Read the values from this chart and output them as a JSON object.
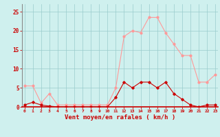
{
  "hours": [
    0,
    1,
    2,
    3,
    4,
    5,
    6,
    7,
    8,
    9,
    10,
    11,
    12,
    13,
    14,
    15,
    16,
    17,
    18,
    19,
    20,
    21,
    22,
    23
  ],
  "vent_moyen": [
    0.5,
    1.2,
    0.5,
    0.2,
    0.0,
    0.0,
    0.0,
    0.0,
    0.0,
    0.0,
    0.0,
    2.5,
    6.5,
    5.0,
    6.5,
    6.5,
    5.0,
    6.5,
    3.5,
    2.0,
    0.5,
    0.0,
    0.5,
    0.5
  ],
  "rafales": [
    5.5,
    5.5,
    1.0,
    3.5,
    0.5,
    0.5,
    0.5,
    0.5,
    0.5,
    0.5,
    0.5,
    5.0,
    18.5,
    20.0,
    19.5,
    23.5,
    23.5,
    19.5,
    16.5,
    13.5,
    13.5,
    6.5,
    6.5,
    8.5
  ],
  "color_moyen": "#cc0000",
  "color_rafales": "#ff9999",
  "bg_color": "#cff0ee",
  "grid_color": "#99cccc",
  "xlabel": "Vent moyen/en rafales ( km/h )",
  "ylim": [
    0,
    27
  ],
  "yticks": [
    0,
    5,
    10,
    15,
    20,
    25
  ],
  "axis_color": "#cc0000",
  "spine_color": "#888888"
}
